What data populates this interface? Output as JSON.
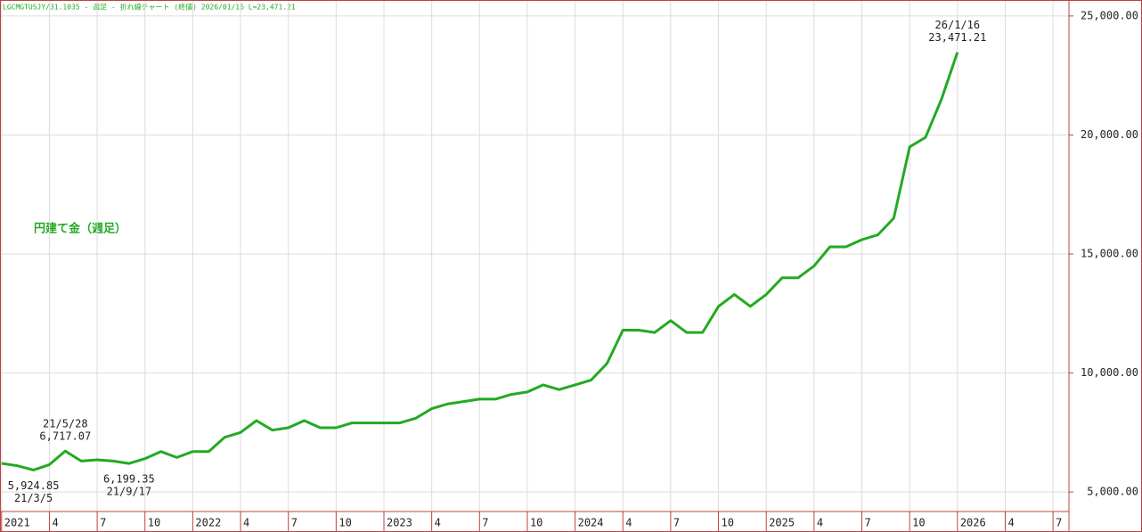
{
  "chart_data": {
    "type": "line",
    "header": "LGCMGTUSJY/31.1035 - 週足 - 折れ線チャート (終値)  2026/01/16 L=23,471.21",
    "series_label": "円建て金（週足）",
    "x": [
      "2021-01",
      "2021-02",
      "2021-03",
      "2021-04",
      "2021-05",
      "2021-06",
      "2021-07",
      "2021-08",
      "2021-09",
      "2021-10",
      "2021-11",
      "2021-12",
      "2022-01",
      "2022-02",
      "2022-03",
      "2022-04",
      "2022-05",
      "2022-06",
      "2022-07",
      "2022-08",
      "2022-09",
      "2022-10",
      "2022-11",
      "2022-12",
      "2023-01",
      "2023-02",
      "2023-03",
      "2023-04",
      "2023-05",
      "2023-06",
      "2023-07",
      "2023-08",
      "2023-09",
      "2023-10",
      "2023-11",
      "2023-12",
      "2024-01",
      "2024-02",
      "2024-03",
      "2024-04",
      "2024-05",
      "2024-06",
      "2024-07",
      "2024-08",
      "2024-09",
      "2024-10",
      "2024-11",
      "2024-12",
      "2025-01",
      "2025-02",
      "2025-03",
      "2025-04",
      "2025-05",
      "2025-06",
      "2025-07",
      "2025-08",
      "2025-09",
      "2025-10",
      "2025-11",
      "2025-12",
      "2026-01"
    ],
    "series": [
      {
        "name": "円建て金（週足）",
        "color": "#22aa22",
        "values": [
          6200,
          6100,
          5925,
          6150,
          6717,
          6300,
          6350,
          6300,
          6199,
          6400,
          6700,
          6450,
          6700,
          6700,
          7300,
          7500,
          8000,
          7600,
          7700,
          8000,
          7700,
          7700,
          7900,
          7900,
          7900,
          7900,
          8100,
          8500,
          8700,
          8800,
          8900,
          8900,
          9100,
          9200,
          9500,
          9300,
          9500,
          9700,
          10400,
          11800,
          11800,
          11700,
          12200,
          11700,
          11700,
          12800,
          13300,
          12800,
          13300,
          14000,
          14000,
          14500,
          15300,
          15300,
          15600,
          15800,
          16500,
          19500,
          19900,
          21500,
          23471.21
        ]
      }
    ],
    "annotations": [
      {
        "x": "2021-03",
        "date": "21/3/5",
        "text": "5,924.85",
        "position": "below"
      },
      {
        "x": "2021-05",
        "date": "21/5/28",
        "text": "6,717.07",
        "position": "above"
      },
      {
        "x": "2021-09",
        "date": "21/9/17",
        "text": "6,199.35",
        "position": "below"
      },
      {
        "x": "2026-01",
        "date": "26/1/16",
        "text": "23,471.21",
        "position": "above"
      }
    ],
    "xlim": [
      "2021-01",
      "2026-08"
    ],
    "xticks": [
      {
        "value": "2021-01",
        "label": "2021"
      },
      {
        "value": "2021-04",
        "label": "4"
      },
      {
        "value": "2021-07",
        "label": "7"
      },
      {
        "value": "2021-10",
        "label": "10"
      },
      {
        "value": "2022-01",
        "label": "2022"
      },
      {
        "value": "2022-04",
        "label": "4"
      },
      {
        "value": "2022-07",
        "label": "7"
      },
      {
        "value": "2022-10",
        "label": "10"
      },
      {
        "value": "2023-01",
        "label": "2023"
      },
      {
        "value": "2023-04",
        "label": "4"
      },
      {
        "value": "2023-07",
        "label": "7"
      },
      {
        "value": "2023-10",
        "label": "10"
      },
      {
        "value": "2024-01",
        "label": "2024"
      },
      {
        "value": "2024-04",
        "label": "4"
      },
      {
        "value": "2024-07",
        "label": "7"
      },
      {
        "value": "2024-10",
        "label": "10"
      },
      {
        "value": "2025-01",
        "label": "2025"
      },
      {
        "value": "2025-04",
        "label": "4"
      },
      {
        "value": "2025-07",
        "label": "7"
      },
      {
        "value": "2025-10",
        "label": "10"
      },
      {
        "value": "2026-01",
        "label": "2026"
      },
      {
        "value": "2026-04",
        "label": "4"
      },
      {
        "value": "2026-07",
        "label": "7"
      }
    ],
    "ylim": [
      4180,
      25670
    ],
    "yticks": [
      {
        "value": 5000,
        "label": "5,000.00"
      },
      {
        "value": 10000,
        "label": "10,000.00"
      },
      {
        "value": 15000,
        "label": "15,000.00"
      },
      {
        "value": 20000,
        "label": "20,000.00"
      },
      {
        "value": 25000,
        "label": "25,000.00"
      }
    ],
    "grid": true
  }
}
